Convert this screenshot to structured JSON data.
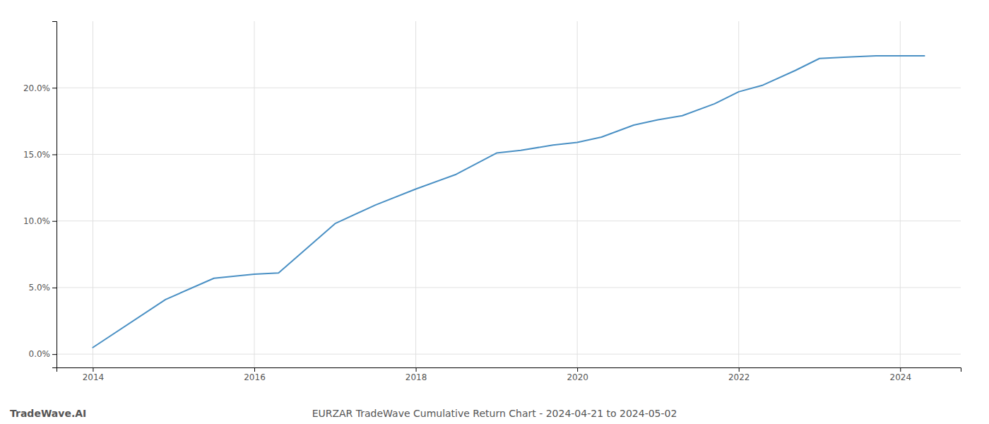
{
  "chart_data": {
    "type": "line",
    "title": "EURZAR TradeWave Cumulative Return Chart - 2024-04-21 to 2024-05-02",
    "annotations": [
      "TradeWave.AI"
    ],
    "x": [
      2014.0,
      2014.9,
      2015.5,
      2016.0,
      2016.3,
      2017.0,
      2017.5,
      2018.0,
      2018.5,
      2019.0,
      2019.3,
      2019.7,
      2020.0,
      2020.3,
      2020.7,
      2021.0,
      2021.3,
      2021.7,
      2022.0,
      2022.3,
      2022.7,
      2023.0,
      2023.3,
      2023.7,
      2024.0,
      2024.3
    ],
    "values": [
      0.5,
      4.1,
      5.7,
      6.0,
      6.1,
      9.8,
      11.2,
      12.4,
      13.5,
      15.1,
      15.3,
      15.7,
      15.9,
      16.3,
      17.2,
      17.6,
      17.9,
      18.8,
      19.7,
      20.2,
      21.3,
      22.2,
      22.3,
      22.4,
      22.4,
      22.4
    ],
    "color": "#4a90c4",
    "xlim": [
      2013.55,
      2024.75
    ],
    "xticks": [
      2014,
      2016,
      2018,
      2020,
      2022,
      2024
    ],
    "ylim": [
      -1.0,
      25.0
    ],
    "yticks": [
      {
        "value": 0.0,
        "label": "0.0%"
      },
      {
        "value": 5.0,
        "label": "5.0%"
      },
      {
        "value": 10.0,
        "label": "10.0%"
      },
      {
        "value": 15.0,
        "label": "15.0%"
      },
      {
        "value": 20.0,
        "label": "20.0%"
      }
    ],
    "grid": true
  }
}
